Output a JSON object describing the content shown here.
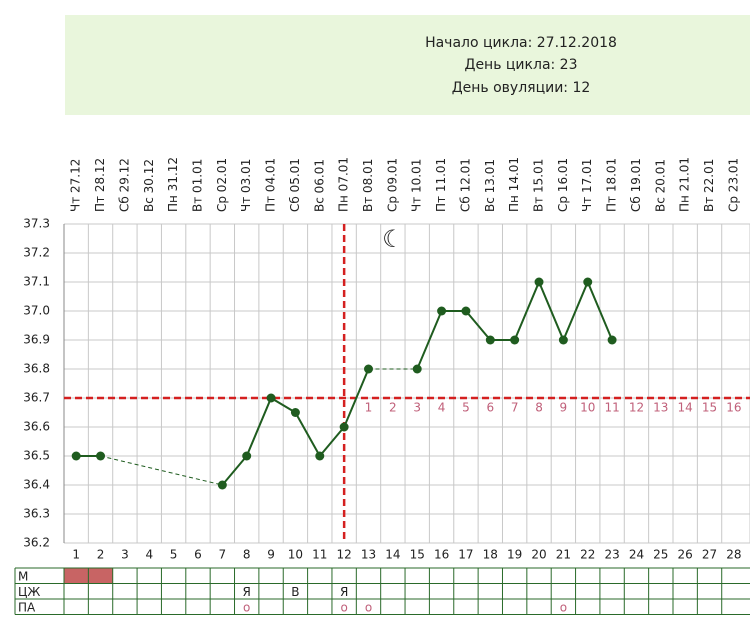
{
  "header": {
    "lines": [
      "Начало цикла: 27.12.2018",
      "День цикла: 23",
      "День овуляции: 12"
    ]
  },
  "chart_data": {
    "type": "line",
    "x": [
      1,
      2,
      3,
      4,
      5,
      6,
      7,
      8,
      9,
      10,
      11,
      12,
      13,
      14,
      15,
      16,
      17,
      18,
      19,
      20,
      21,
      22,
      23,
      24,
      25,
      26,
      27,
      28
    ],
    "dates": [
      "Чт 27.12",
      "Пт 28.12",
      "Сб 29.12",
      "Вс 30.12",
      "Пн 31.12",
      "Вт 01.01",
      "Ср 02.01",
      "Чт 03.01",
      "Пт 04.01",
      "Сб 05.01",
      "Вс 06.01",
      "Пн 07.01",
      "Вт 08.01",
      "Ср 09.01",
      "Чт 10.01",
      "Пт 11.01",
      "Сб 12.01",
      "Вс 13.01",
      "Пн 14.01",
      "Вт 15.01",
      "Ср 16.01",
      "Чт 17.01",
      "Пт 18.01",
      "Сб 19.01",
      "Вс 20.01",
      "Пн 21.01",
      "Вт 22.01",
      "Ср 23.01"
    ],
    "series": [
      {
        "color": "#1f5c1f",
        "values": [
          36.5,
          36.5,
          null,
          null,
          null,
          null,
          36.4,
          36.5,
          36.7,
          36.65,
          36.5,
          36.6,
          36.8,
          null,
          36.8,
          37.0,
          37.0,
          36.9,
          36.9,
          37.1,
          36.9,
          37.1,
          36.9,
          null,
          null,
          null,
          null,
          null
        ]
      }
    ],
    "xlim": [
      0.5,
      28.5
    ],
    "ylim": [
      36.2,
      37.3
    ],
    "yticks": [
      36.2,
      36.3,
      36.4,
      36.5,
      36.6,
      36.7,
      36.8,
      36.9,
      {
        "value": 37.0,
        "label": "37.0"
      },
      37.1,
      37.2,
      37.3
    ],
    "coverline": 36.7,
    "ovulation_x": 12,
    "line_color": "#d42020",
    "phase_labels": [
      null,
      null,
      null,
      null,
      null,
      null,
      null,
      null,
      null,
      null,
      null,
      null,
      "1",
      "2",
      "3",
      "4",
      "5",
      "6",
      "7",
      "8",
      "9",
      "10",
      "11",
      "12",
      "13",
      "14",
      "15",
      "16"
    ],
    "moon": "☾",
    "moon_x": 14,
    "grid": true
  },
  "table": {
    "rows": [
      {
        "label": "М",
        "filled_days": [
          1,
          2
        ]
      },
      {
        "label": "ЦЖ",
        "cells": [
          null,
          null,
          null,
          null,
          null,
          null,
          null,
          "Я",
          null,
          "В",
          null,
          "Я",
          null,
          null,
          null,
          null,
          null,
          null,
          null,
          null,
          null,
          null,
          null,
          null,
          null,
          null,
          null,
          null
        ]
      },
      {
        "label": "ПА",
        "cells": [
          null,
          null,
          null,
          null,
          null,
          null,
          null,
          "о",
          null,
          null,
          null,
          "о",
          "о",
          null,
          null,
          null,
          null,
          null,
          null,
          null,
          "о",
          null,
          null,
          null,
          null,
          null,
          null,
          null
        ]
      }
    ]
  }
}
